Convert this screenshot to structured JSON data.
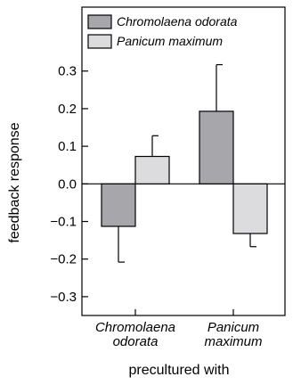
{
  "chart_data": {
    "type": "bar",
    "categories": [
      [
        "Chromolaena",
        "odorata"
      ],
      [
        "Panicum",
        "maximum"
      ]
    ],
    "series": [
      {
        "name": "Chromolaena odorata",
        "color": "#a6a6ab",
        "values": [
          -0.113,
          0.193
        ],
        "error_upper": [
          0,
          0.317
        ],
        "error_lower": [
          -0.208,
          0
        ]
      },
      {
        "name": "Panicum maximum",
        "color": "#dcdcdf",
        "values": [
          0.073,
          -0.132
        ],
        "error_upper": [
          0.128,
          0
        ],
        "error_lower": [
          0,
          -0.167
        ]
      }
    ],
    "xlabel": "precultured with",
    "ylabel": "feedback response",
    "ylim": [
      -0.35,
      0.47
    ],
    "yticks": [
      -0.3,
      -0.2,
      -0.1,
      0.0,
      0.1,
      0.2,
      0.3
    ],
    "ytick_labels": [
      "−0.3",
      "−0.2",
      "−0.1",
      "0.0",
      "0.1",
      "0.2",
      "0.3"
    ],
    "zero_line": true,
    "grid": false,
    "legend_position": "top-left"
  }
}
